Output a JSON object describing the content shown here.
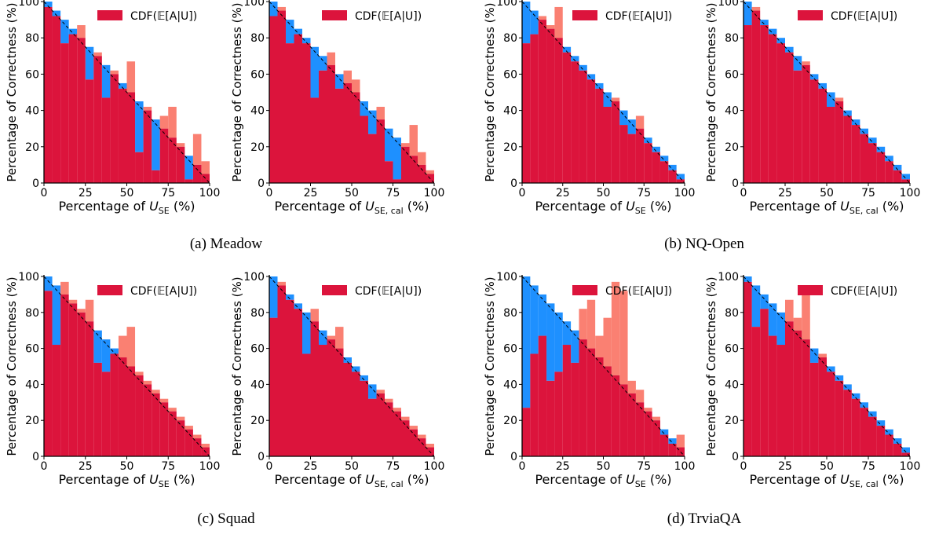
{
  "colors": {
    "bar": "#dc143c",
    "over": "#fa8072",
    "under": "#1e90ff",
    "diagonal": "#000000"
  },
  "captions": [
    "(a) Meadow",
    "(b) NQ-Open",
    "(c) Squad",
    "(d) TrviaQA"
  ],
  "axis_text": {
    "ylabel": "Percentage of Correctness (%)",
    "xlabel_prefix": "Percentage of ",
    "xlabel_suffix": " (%)",
    "var_main": "U",
    "sub_se": "SE",
    "sub_cal": "SE, cal",
    "legend": "CDF(𝔼[A|U])"
  },
  "chart_data": [
    {
      "type": "bar",
      "panel": "a-left",
      "group": "(a) Meadow",
      "xvar": "sub_se",
      "x": [
        0,
        5,
        10,
        15,
        20,
        25,
        30,
        35,
        40,
        45,
        50,
        55,
        60,
        65,
        70,
        75,
        80,
        85,
        90,
        95
      ],
      "values": [
        97,
        92,
        77,
        82,
        87,
        57,
        72,
        47,
        62,
        52,
        67,
        17,
        42,
        7,
        37,
        42,
        22,
        2,
        27,
        12
      ],
      "xlim": [
        0,
        100
      ],
      "ylim": [
        0,
        100
      ],
      "xticks": [
        0,
        25,
        50,
        75,
        100
      ],
      "yticks": [
        0,
        20,
        40,
        60,
        80,
        100
      ],
      "xlabel": "",
      "ylabel": "Percentage of Correctness (%)",
      "legend": [
        "CDF(𝔼[A|U])"
      ],
      "legend_position": "top-right"
    },
    {
      "type": "bar",
      "panel": "a-right",
      "group": "(a) Meadow",
      "xvar": "sub_cal",
      "x": [
        0,
        5,
        10,
        15,
        20,
        25,
        30,
        35,
        40,
        45,
        50,
        55,
        60,
        65,
        70,
        75,
        80,
        85,
        90,
        95
      ],
      "values": [
        92,
        97,
        77,
        82,
        77,
        47,
        62,
        72,
        52,
        62,
        57,
        37,
        27,
        42,
        12,
        2,
        22,
        32,
        17,
        7
      ],
      "xlim": [
        0,
        100
      ],
      "ylim": [
        0,
        100
      ],
      "xticks": [
        0,
        25,
        50,
        75,
        100
      ],
      "yticks": [
        0,
        20,
        40,
        60,
        80,
        100
      ],
      "xlabel": "",
      "ylabel": "Percentage of Correctness (%)",
      "legend": [
        "CDF(𝔼[A|U])"
      ],
      "legend_position": "top-right"
    },
    {
      "type": "bar",
      "panel": "b-left",
      "group": "(b) NQ-Open",
      "xvar": "sub_se",
      "x": [
        0,
        5,
        10,
        15,
        20,
        25,
        30,
        35,
        40,
        45,
        50,
        55,
        60,
        65,
        70,
        75,
        80,
        85,
        90,
        95
      ],
      "values": [
        77,
        82,
        92,
        87,
        97,
        72,
        67,
        62,
        57,
        52,
        42,
        47,
        32,
        27,
        37,
        22,
        17,
        12,
        7,
        2
      ],
      "xlim": [
        0,
        100
      ],
      "ylim": [
        0,
        100
      ],
      "xticks": [
        0,
        25,
        50,
        75,
        100
      ],
      "yticks": [
        0,
        20,
        40,
        60,
        80,
        100
      ],
      "xlabel": "",
      "ylabel": "Percentage of Correctness (%)",
      "legend": [
        "CDF(𝔼[A|U])"
      ],
      "legend_position": "top-right"
    },
    {
      "type": "bar",
      "panel": "b-right",
      "group": "(b) NQ-Open",
      "xvar": "sub_cal",
      "x": [
        0,
        5,
        10,
        15,
        20,
        25,
        30,
        35,
        40,
        45,
        50,
        55,
        60,
        65,
        70,
        75,
        80,
        85,
        90,
        95
      ],
      "values": [
        87,
        97,
        87,
        82,
        77,
        72,
        62,
        67,
        57,
        52,
        42,
        47,
        37,
        32,
        27,
        22,
        17,
        12,
        7,
        2
      ],
      "xlim": [
        0,
        100
      ],
      "ylim": [
        0,
        100
      ],
      "xticks": [
        0,
        25,
        50,
        75,
        100
      ],
      "yticks": [
        0,
        20,
        40,
        60,
        80,
        100
      ],
      "xlabel": "",
      "ylabel": "Percentage of Correctness (%)",
      "legend": [
        "CDF(𝔼[A|U])"
      ],
      "legend_position": "top-right"
    },
    {
      "type": "bar",
      "panel": "c-left",
      "group": "(c) Squad",
      "xvar": "sub_se",
      "x": [
        0,
        5,
        10,
        15,
        20,
        25,
        30,
        35,
        40,
        45,
        50,
        55,
        60,
        65,
        70,
        75,
        80,
        85,
        90,
        95
      ],
      "values": [
        92,
        62,
        97,
        87,
        82,
        87,
        52,
        47,
        57,
        67,
        72,
        47,
        42,
        37,
        32,
        27,
        22,
        17,
        12,
        7
      ],
      "xlim": [
        0,
        100
      ],
      "ylim": [
        0,
        100
      ],
      "xticks": [
        0,
        25,
        50,
        75,
        100
      ],
      "yticks": [
        0,
        20,
        40,
        60,
        80,
        100
      ],
      "xlabel": "",
      "ylabel": "Percentage of Correctness (%)",
      "legend": [
        "CDF(𝔼[A|U])"
      ],
      "legend_position": "top-right"
    },
    {
      "type": "bar",
      "panel": "c-right",
      "group": "(c) Squad",
      "xvar": "sub_cal",
      "x": [
        0,
        5,
        10,
        15,
        20,
        25,
        30,
        35,
        40,
        45,
        50,
        55,
        60,
        65,
        70,
        75,
        80,
        85,
        90,
        95
      ],
      "values": [
        77,
        97,
        87,
        82,
        57,
        82,
        62,
        67,
        72,
        52,
        47,
        42,
        32,
        37,
        32,
        27,
        22,
        17,
        12,
        7
      ],
      "xlim": [
        0,
        100
      ],
      "ylim": [
        0,
        100
      ],
      "xticks": [
        0,
        25,
        50,
        75,
        100
      ],
      "yticks": [
        0,
        20,
        40,
        60,
        80,
        100
      ],
      "xlabel": "",
      "ylabel": "Percentage of Correctness (%)",
      "legend": [
        "CDF(𝔼[A|U])"
      ],
      "legend_position": "top-right"
    },
    {
      "type": "bar",
      "panel": "d-left",
      "group": "(d) TrviaQA",
      "xvar": "sub_se",
      "x": [
        0,
        5,
        10,
        15,
        20,
        25,
        30,
        35,
        40,
        45,
        50,
        55,
        60,
        65,
        70,
        75,
        80,
        85,
        90,
        95
      ],
      "values": [
        27,
        57,
        67,
        42,
        47,
        62,
        52,
        82,
        87,
        67,
        77,
        97,
        92,
        42,
        37,
        27,
        22,
        12,
        7,
        12
      ],
      "xlim": [
        0,
        100
      ],
      "ylim": [
        0,
        100
      ],
      "xticks": [
        0,
        25,
        50,
        75,
        100
      ],
      "yticks": [
        0,
        20,
        40,
        60,
        80,
        100
      ],
      "xlabel": "",
      "ylabel": "Percentage of Correctness (%)",
      "legend": [
        "CDF(𝔼[A|U])"
      ],
      "legend_position": "top-right"
    },
    {
      "type": "bar",
      "panel": "d-right",
      "group": "(d) TrviaQA",
      "xvar": "sub_cal",
      "x": [
        0,
        5,
        10,
        15,
        20,
        25,
        30,
        35,
        40,
        45,
        50,
        55,
        60,
        65,
        70,
        75,
        80,
        85,
        90,
        95
      ],
      "values": [
        97,
        72,
        82,
        67,
        62,
        87,
        77,
        92,
        52,
        57,
        47,
        42,
        37,
        32,
        27,
        22,
        17,
        12,
        7,
        2
      ],
      "xlim": [
        0,
        100
      ],
      "ylim": [
        0,
        100
      ],
      "xticks": [
        0,
        25,
        50,
        75,
        100
      ],
      "yticks": [
        0,
        20,
        40,
        60,
        80,
        100
      ],
      "xlabel": "",
      "ylabel": "Percentage of Correctness (%)",
      "legend": [
        "CDF(𝔼[A|U])"
      ],
      "legend_position": "top-right"
    }
  ]
}
